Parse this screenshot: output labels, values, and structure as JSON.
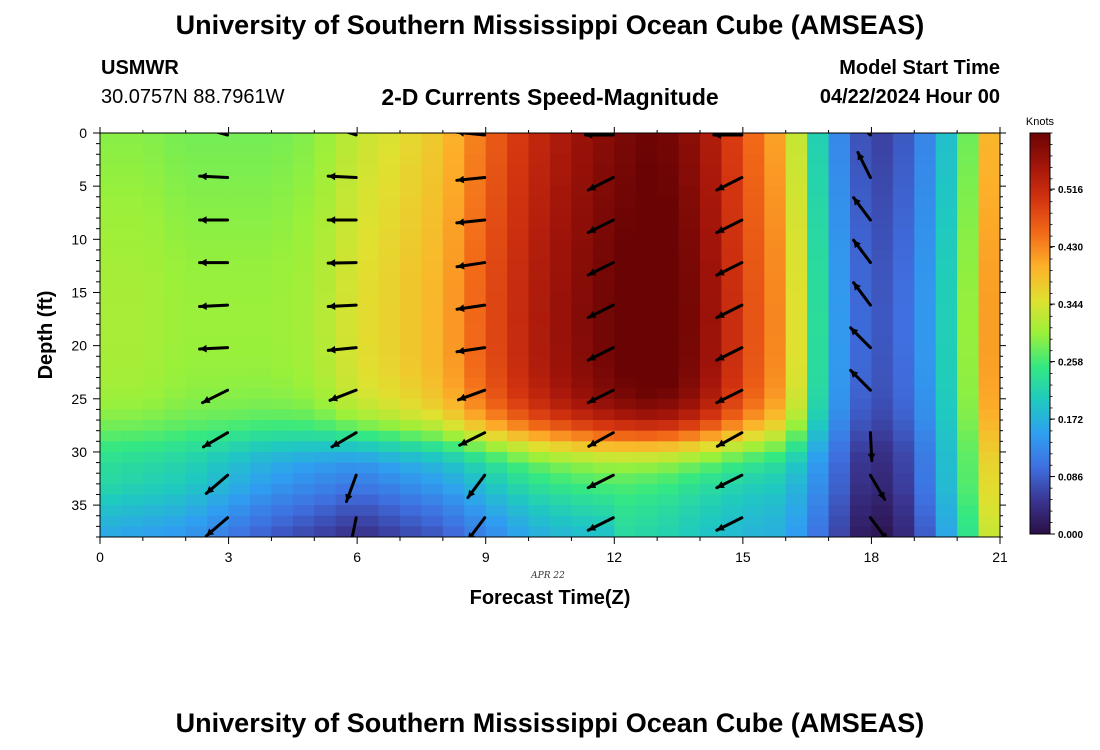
{
  "header": {
    "title": "University of Southern Mississippi Ocean Cube (AMSEAS)",
    "station_name": "USMWR",
    "station_coords": "30.0757N  88.7961W",
    "subtitle": "2-D Currents Speed-Magnitude",
    "start_label": "Model Start Time",
    "start_value": "04/22/2024 Hour 00"
  },
  "footer": {
    "title": "University of Southern Mississippi Ocean Cube (AMSEAS)"
  },
  "chart_data": {
    "type": "heatmap",
    "title": "2-D Currents Speed-Magnitude",
    "xlabel": "Forecast Time(Z)",
    "ylabel": "Depth (ft)",
    "date_label": "APR 22",
    "xlim": [
      0,
      21
    ],
    "ylim": [
      38,
      0
    ],
    "x_ticks": [
      0,
      3,
      6,
      9,
      12,
      15,
      18,
      21
    ],
    "y_ticks": [
      0,
      5,
      10,
      15,
      20,
      25,
      30,
      35
    ],
    "colorbar": {
      "label": "Knots",
      "ticks": [
        "0.000",
        "0.086",
        "0.172",
        "0.258",
        "0.344",
        "0.430",
        "0.516"
      ],
      "range": [
        0,
        0.6
      ],
      "colors": [
        "#2a0f45",
        "#3a3591",
        "#3f6fe0",
        "#2f9ff0",
        "#1fc9c0",
        "#34e882",
        "#9af03a",
        "#e0e030",
        "#fdb02a",
        "#f26a18",
        "#d43510",
        "#a4150a",
        "#6a0404"
      ]
    },
    "speed_profiles": [
      {
        "hour": 0.0,
        "surface": 0.28,
        "deep": 0.22
      },
      {
        "hour": 1.0,
        "surface": 0.28,
        "deep": 0.21
      },
      {
        "hour": 2.0,
        "surface": 0.27,
        "deep": 0.2
      },
      {
        "hour": 3.0,
        "surface": 0.27,
        "deep": 0.17
      },
      {
        "hour": 4.0,
        "surface": 0.27,
        "deep": 0.14
      },
      {
        "hour": 5.0,
        "surface": 0.28,
        "deep": 0.12
      },
      {
        "hour": 6.0,
        "surface": 0.32,
        "deep": 0.1
      },
      {
        "hour": 7.0,
        "surface": 0.34,
        "deep": 0.12
      },
      {
        "hour": 8.0,
        "surface": 0.37,
        "deep": 0.14
      },
      {
        "hour": 9.0,
        "surface": 0.44,
        "deep": 0.18
      },
      {
        "hour": 10.0,
        "surface": 0.5,
        "deep": 0.22
      },
      {
        "hour": 11.0,
        "surface": 0.54,
        "deep": 0.24
      },
      {
        "hour": 12.0,
        "surface": 0.57,
        "deep": 0.25
      },
      {
        "hour": 13.0,
        "surface": 0.59,
        "deep": 0.24
      },
      {
        "hour": 14.0,
        "surface": 0.55,
        "deep": 0.22
      },
      {
        "hour": 15.0,
        "surface": 0.46,
        "deep": 0.2
      },
      {
        "hour": 16.0,
        "surface": 0.38,
        "deep": 0.19
      },
      {
        "hour": 17.0,
        "surface": 0.14,
        "deep": 0.11
      },
      {
        "hour": 18.0,
        "surface": 0.04,
        "deep": 0.02
      },
      {
        "hour": 19.0,
        "surface": 0.08,
        "deep": 0.07
      },
      {
        "hour": 20.0,
        "surface": 0.21,
        "deep": 0.22
      },
      {
        "hour": 21.0,
        "surface": 0.44,
        "deep": 0.4
      }
    ],
    "vector_columns": [
      3,
      6,
      9,
      12,
      15,
      18
    ],
    "vector_depths": [
      0,
      4,
      8,
      12,
      16,
      20,
      24,
      28,
      32,
      36
    ],
    "vectors": [
      [
        [
          -0.9,
          0.25
        ],
        [
          -1.0,
          0.05
        ],
        [
          -1.0,
          0.0
        ],
        [
          -1.0,
          0.0
        ],
        [
          -1.0,
          -0.05
        ],
        [
          -1.0,
          -0.05
        ],
        [
          -0.9,
          -0.45
        ],
        [
          -0.85,
          -0.5
        ],
        [
          -0.7,
          -0.6
        ],
        [
          -0.7,
          -0.6
        ]
      ],
      [
        [
          -0.9,
          0.3
        ],
        [
          -1.0,
          0.05
        ],
        [
          -1.0,
          0.0
        ],
        [
          -1.0,
          -0.02
        ],
        [
          -1.0,
          -0.05
        ],
        [
          -1.0,
          -0.1
        ],
        [
          -0.9,
          -0.35
        ],
        [
          -0.85,
          -0.5
        ],
        [
          -0.35,
          -0.95
        ],
        [
          -0.2,
          -1.0
        ]
      ],
      [
        [
          -1.0,
          0.1
        ],
        [
          -1.0,
          -0.1
        ],
        [
          -1.0,
          -0.1
        ],
        [
          -1.0,
          -0.15
        ],
        [
          -1.0,
          -0.15
        ],
        [
          -1.0,
          -0.15
        ],
        [
          -0.95,
          -0.35
        ],
        [
          -0.9,
          -0.45
        ],
        [
          -0.6,
          -0.8
        ],
        [
          -0.6,
          -0.8
        ]
      ],
      [
        [
          -0.85,
          0.0
        ],
        [
          -0.9,
          -0.45
        ],
        [
          -0.9,
          -0.45
        ],
        [
          -0.9,
          -0.45
        ],
        [
          -0.9,
          -0.45
        ],
        [
          -0.9,
          -0.45
        ],
        [
          -0.9,
          -0.45
        ],
        [
          -0.9,
          -0.5
        ],
        [
          -0.9,
          -0.45
        ],
        [
          -0.9,
          -0.45
        ]
      ],
      [
        [
          -0.7,
          0.0
        ],
        [
          -0.9,
          -0.45
        ],
        [
          -0.9,
          -0.45
        ],
        [
          -0.9,
          -0.45
        ],
        [
          -0.9,
          -0.45
        ],
        [
          -0.9,
          -0.45
        ],
        [
          -0.9,
          -0.45
        ],
        [
          -0.9,
          -0.5
        ],
        [
          -0.9,
          -0.45
        ],
        [
          -0.9,
          -0.45
        ]
      ],
      [
        [
          -0.7,
          0.65
        ],
        [
          -0.45,
          0.9
        ],
        [
          -0.6,
          0.8
        ],
        [
          -0.6,
          0.8
        ],
        [
          -0.6,
          0.8
        ],
        [
          -0.7,
          0.7
        ],
        [
          -0.7,
          0.7
        ],
        [
          0.05,
          -1.0
        ],
        [
          0.5,
          -0.85
        ],
        [
          0.6,
          -0.8
        ]
      ]
    ]
  }
}
